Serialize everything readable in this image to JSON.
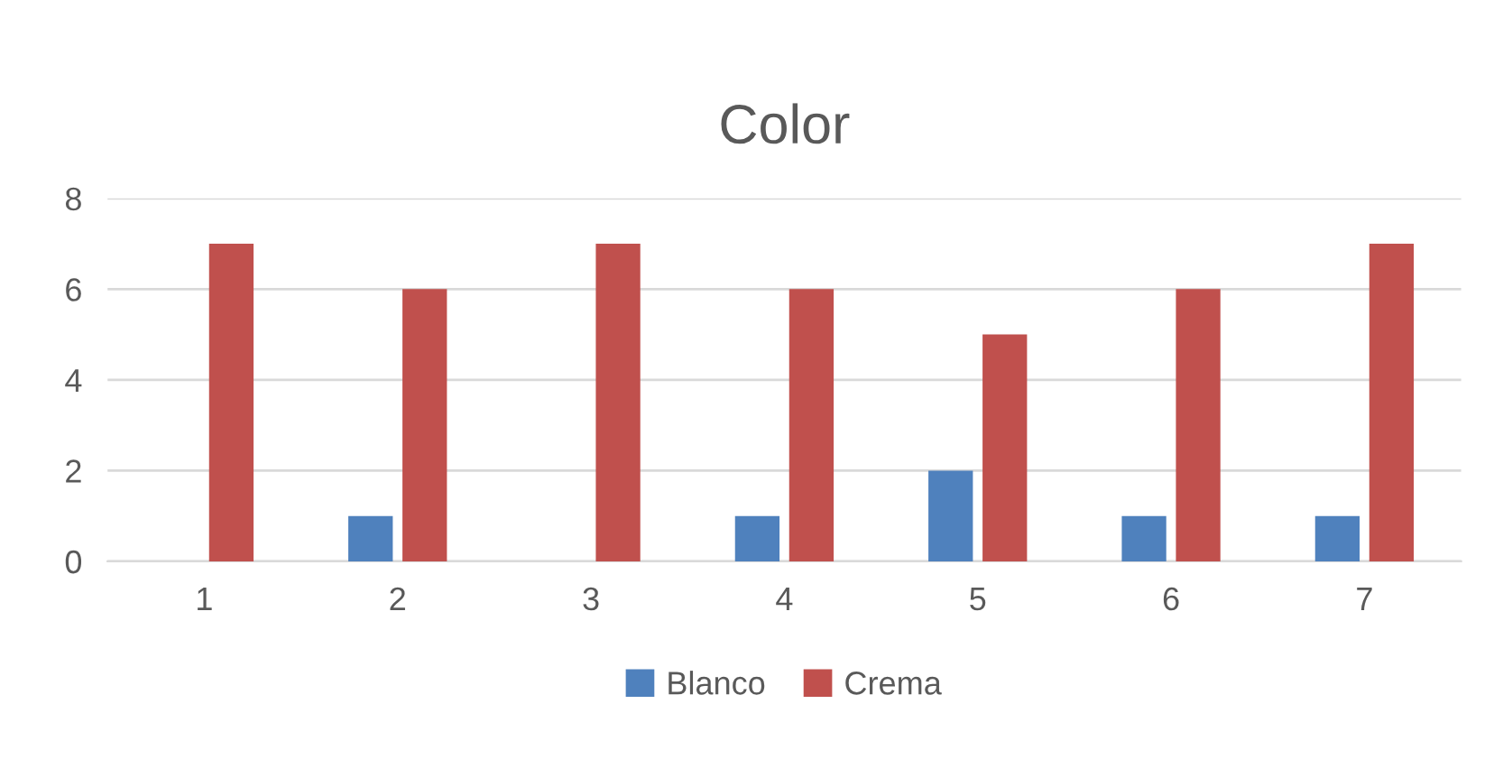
{
  "chart_data": {
    "type": "bar",
    "title": "Color",
    "categories": [
      "1",
      "2",
      "3",
      "4",
      "5",
      "6",
      "7"
    ],
    "series": [
      {
        "name": "Blanco",
        "color": "#4f81bd",
        "values": [
          0,
          1,
          0,
          1,
          2,
          1,
          1
        ]
      },
      {
        "name": "Crema",
        "color": "#c0504d",
        "values": [
          7,
          6,
          7,
          6,
          5,
          6,
          7
        ]
      }
    ],
    "ylim": [
      0,
      8
    ],
    "yticks": [
      0,
      2,
      4,
      6,
      8
    ],
    "grid": "y",
    "legend": "bottom"
  }
}
